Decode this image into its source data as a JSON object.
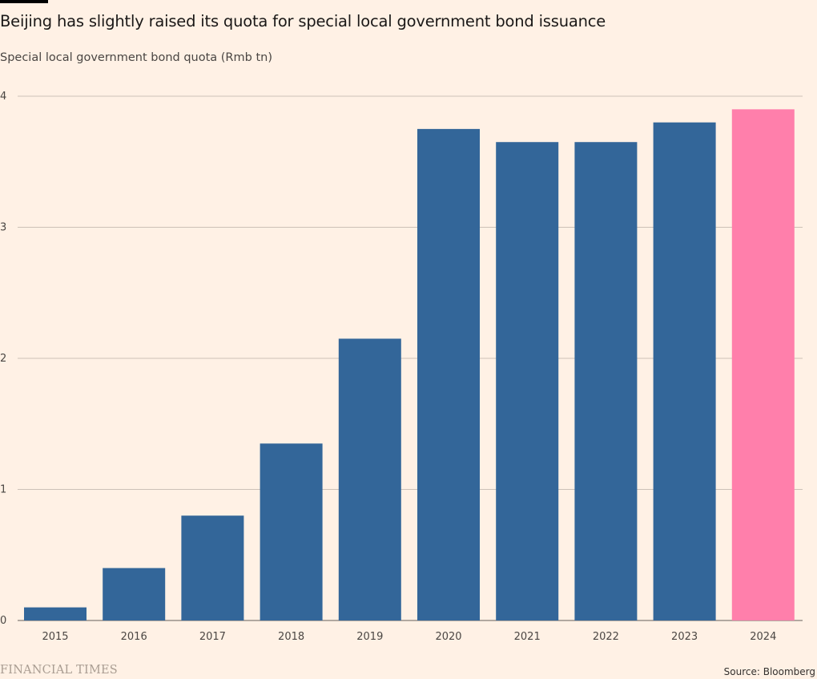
{
  "title": "Beijing has slightly raised its quota for special local government bond issuance",
  "subtitle": "Special local government bond quota (Rmb tn)",
  "brand": "FINANCIAL TIMES",
  "source": "Source: Bloomberg",
  "colors": {
    "background": "#fff1e5",
    "bar": "#336699",
    "highlight": "#ff7fab",
    "grid": "#ccc1b7",
    "axis": "#66605c"
  },
  "chart_data": {
    "type": "bar",
    "categories": [
      "2015",
      "2016",
      "2017",
      "2018",
      "2019",
      "2020",
      "2021",
      "2022",
      "2023",
      "2024"
    ],
    "values": [
      0.1,
      0.4,
      0.8,
      1.35,
      2.15,
      3.75,
      3.65,
      3.65,
      3.8,
      3.9
    ],
    "highlight_category": "2024",
    "ylim": [
      0,
      4
    ],
    "yticks": [
      0,
      1,
      2,
      3,
      4
    ],
    "xlabel": "",
    "ylabel": "",
    "grid": true
  }
}
